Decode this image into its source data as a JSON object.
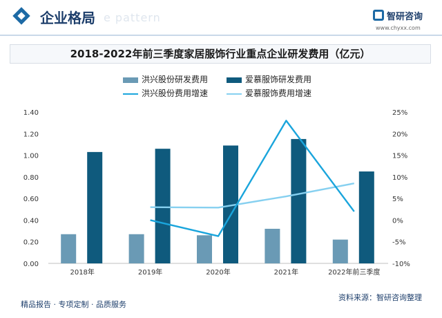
{
  "header": {
    "section_title": "企业格局",
    "watermark": "e pattern",
    "logo_name": "智研咨询",
    "logo_url": "www.chyxx.com"
  },
  "footer": {
    "left": "精品报告 · 专项定制 · 品质服务",
    "source": "资料来源：智研咨询整理"
  },
  "colors": {
    "hongxing_bar": "#6a9ab5",
    "aimu_bar": "#0f5a7d",
    "hongxing_line": "#1aa5dc",
    "aimu_line": "#86d0f0"
  },
  "chart_data": {
    "type": "bar",
    "title": "2018-2022年前三季度家居服饰行业重点企业研发费用（亿元）",
    "categories": [
      "2018年",
      "2019年",
      "2020年",
      "2021年",
      "2022年前三季度"
    ],
    "y_left": {
      "min": 0,
      "max": 1.4,
      "ticks": [
        "0.00",
        "0.20",
        "0.40",
        "0.60",
        "0.80",
        "1.00",
        "1.20",
        "1.40"
      ]
    },
    "y_right": {
      "min": -10,
      "max": 25,
      "ticks": [
        "-10%",
        "-5%",
        "0%",
        "5%",
        "10%",
        "15%",
        "20%",
        "25%"
      ]
    },
    "series": [
      {
        "name": "洪兴股份研发费用",
        "type": "bar",
        "axis": "left",
        "values": [
          0.27,
          0.27,
          0.26,
          0.32,
          0.22
        ]
      },
      {
        "name": "爱慕服饰研发费用",
        "type": "bar",
        "axis": "left",
        "values": [
          1.03,
          1.06,
          1.09,
          1.15,
          0.85
        ]
      },
      {
        "name": "洪兴股份费用增速",
        "type": "line",
        "axis": "right",
        "values": [
          null,
          0.0,
          -3.7,
          23.0,
          2.0
        ]
      },
      {
        "name": "爱慕服饰费用增速",
        "type": "line",
        "axis": "right",
        "values": [
          null,
          3.0,
          2.9,
          5.5,
          8.5
        ]
      }
    ],
    "grid": false,
    "legend_position": "top"
  }
}
